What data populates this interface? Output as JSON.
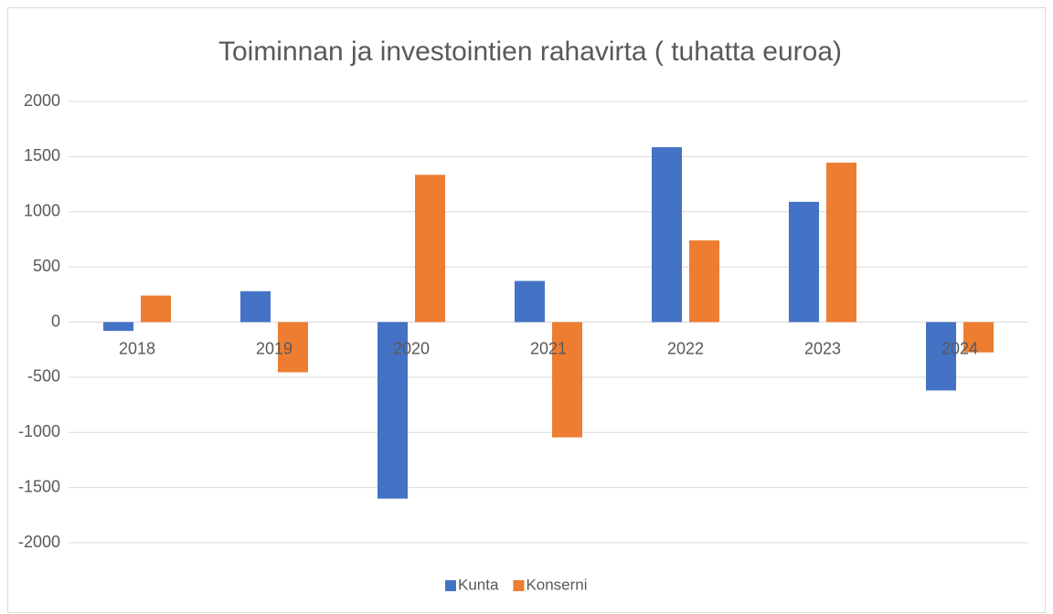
{
  "chart_data": {
    "type": "bar",
    "title": "Toiminnan ja investointien rahavirta ( tuhatta euroa)",
    "categories": [
      "2018",
      "2019",
      "2020",
      "2021",
      "2022",
      "2023",
      "2024"
    ],
    "series": [
      {
        "name": "Kunta",
        "color": "#4472c4",
        "values": [
          -80,
          280,
          -1600,
          373,
          1585,
          1090,
          -620
        ]
      },
      {
        "name": "Konserni",
        "color": "#ed7d31",
        "values": [
          240,
          -455,
          1335,
          -1045,
          740,
          1445,
          -275
        ]
      }
    ],
    "ylim": [
      -2000,
      2000
    ],
    "yticks": [
      -2000,
      -1500,
      -1000,
      -500,
      0,
      500,
      1000,
      1500,
      2000
    ],
    "grid": true,
    "legend": "bottom"
  }
}
